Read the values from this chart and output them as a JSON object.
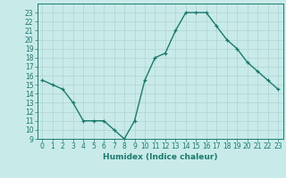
{
  "x": [
    0,
    1,
    2,
    3,
    4,
    5,
    6,
    7,
    8,
    9,
    10,
    11,
    12,
    13,
    14,
    15,
    16,
    17,
    18,
    19,
    20,
    21,
    22,
    23
  ],
  "y": [
    15.5,
    15,
    14.5,
    13,
    11,
    11,
    11,
    10,
    9,
    11,
    15.5,
    18,
    18.5,
    21,
    23,
    23,
    23,
    21.5,
    20,
    19,
    17.5,
    16.5,
    15.5,
    14.5
  ],
  "line_color": "#1a7a6e",
  "marker": "+",
  "bg_color": "#c8eae8",
  "grid_color": "#b0d4d2",
  "xlabel": "Humidex (Indice chaleur)",
  "xlim": [
    -0.5,
    23.5
  ],
  "ylim": [
    9,
    24
  ],
  "xticks": [
    0,
    1,
    2,
    3,
    4,
    5,
    6,
    7,
    8,
    9,
    10,
    11,
    12,
    13,
    14,
    15,
    16,
    17,
    18,
    19,
    20,
    21,
    22,
    23
  ],
  "yticks": [
    9,
    10,
    11,
    12,
    13,
    14,
    15,
    16,
    17,
    18,
    19,
    20,
    21,
    22,
    23
  ],
  "tick_color": "#1a7a6e",
  "axis_color": "#1a7a6e",
  "xlabel_fontsize": 6.5,
  "tick_fontsize": 5.5,
  "linewidth": 1.0,
  "marker_size": 3
}
